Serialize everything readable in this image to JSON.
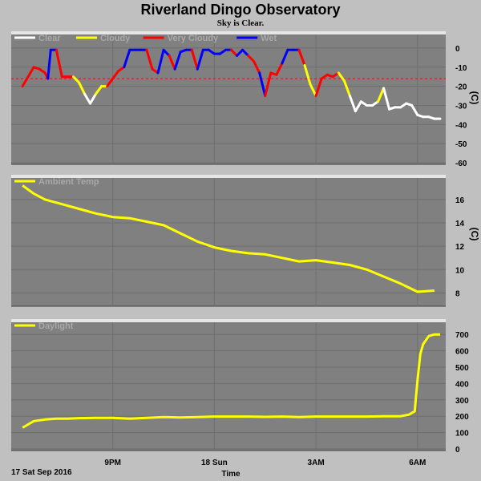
{
  "header": {
    "title": "Riverland Dingo Observatory",
    "subtitle": "Sky is Clear."
  },
  "footer": {
    "date_label": "17 Sat Sep 2016",
    "x_title": "Time"
  },
  "colors": {
    "clear": "#ffffff",
    "cloudy": "#ffff00",
    "very_cloudy": "#ff0000",
    "wet": "#0000ff",
    "plot_bg": "#808080",
    "chart_bg": "#c0c0c0",
    "grid": "#6e6e6e",
    "threshold_line": "#ff0000"
  },
  "chart_data": [
    {
      "type": "line",
      "name": "sky-temperature",
      "legend": [
        {
          "label": "Clear",
          "color": "#ffffff"
        },
        {
          "label": "Cloudy",
          "color": "#ffff00"
        },
        {
          "label": "Very Cloudy",
          "color": "#ff0000"
        },
        {
          "label": "Wet",
          "color": "#0000ff"
        }
      ],
      "legend_placement": "top-left",
      "unit_label": "(C)",
      "ylim": [
        -60,
        5
      ],
      "yticks": [
        0,
        -10,
        -20,
        -30,
        -40,
        -50,
        -60
      ],
      "grid": true,
      "threshold": -16,
      "x": [
        "18:20",
        "18:30",
        "18:40",
        "18:50",
        "19:00",
        "19:05",
        "19:10",
        "19:20",
        "19:30",
        "19:40",
        "19:50",
        "20:00",
        "20:10",
        "20:20",
        "20:30",
        "20:40",
        "20:50",
        "21:00",
        "21:10",
        "21:20",
        "21:30",
        "21:40",
        "21:50",
        "22:00",
        "22:10",
        "22:20",
        "22:30",
        "22:40",
        "22:50",
        "23:00",
        "23:10",
        "23:20",
        "23:30",
        "23:40",
        "23:50",
        "00:00",
        "00:10",
        "00:20",
        "00:30",
        "00:40",
        "00:50",
        "01:00",
        "01:10",
        "01:20",
        "01:30",
        "01:40",
        "01:50",
        "02:00",
        "02:10",
        "02:20",
        "02:30",
        "02:40",
        "02:50",
        "03:00",
        "03:10",
        "03:20",
        "03:30",
        "03:40",
        "03:50",
        "04:00",
        "04:10",
        "04:20",
        "04:30",
        "04:40",
        "04:50",
        "05:00",
        "05:10",
        "05:20",
        "05:30",
        "05:40",
        "05:50",
        "06:00",
        "06:10",
        "06:20",
        "06:30",
        "06:40"
      ],
      "y": [
        -20,
        -15,
        -10,
        -11,
        -13,
        -16,
        -1,
        -1,
        -15,
        -15,
        -15,
        -18,
        -24,
        -29,
        -24,
        -20,
        -20,
        -16,
        -12,
        -10,
        -1,
        -1,
        -1,
        -1,
        -11,
        -13,
        -1,
        -4,
        -11,
        -2,
        -1,
        -1,
        -11,
        -1,
        -1,
        -3,
        -3,
        -1,
        -1,
        -4,
        -1,
        -4,
        -7,
        -13,
        -25,
        -13,
        -14,
        -8,
        -1,
        -1,
        -1,
        -9,
        -19,
        -25,
        -16,
        -14,
        -15,
        -13,
        -17,
        -25,
        -33,
        -28,
        -30,
        -30,
        -28,
        -21,
        -32,
        -31,
        -31,
        -29,
        -30,
        -35,
        -36,
        -36,
        -37,
        -37
      ],
      "state": [
        "cloudy",
        "very_cloudy",
        "very_cloudy",
        "very_cloudy",
        "very_cloudy",
        "very_cloudy",
        "wet",
        "wet",
        "very_cloudy",
        "very_cloudy",
        "very_cloudy",
        "cloudy",
        "cloudy",
        "clear",
        "clear",
        "cloudy",
        "cloudy",
        "very_cloudy",
        "very_cloudy",
        "very_cloudy",
        "wet",
        "wet",
        "wet",
        "wet",
        "very_cloudy",
        "very_cloudy",
        "wet",
        "wet",
        "very_cloudy",
        "wet",
        "wet",
        "wet",
        "very_cloudy",
        "wet",
        "wet",
        "wet",
        "wet",
        "wet",
        "wet",
        "very_cloudy",
        "wet",
        "wet",
        "very_cloudy",
        "very_cloudy",
        "wet",
        "very_cloudy",
        "very_cloudy",
        "very_cloudy",
        "wet",
        "wet",
        "wet",
        "very_cloudy",
        "cloudy",
        "cloudy",
        "very_cloudy",
        "very_cloudy",
        "very_cloudy",
        "very_cloudy",
        "cloudy",
        "cloudy",
        "clear",
        "clear",
        "clear",
        "clear",
        "clear",
        "cloudy",
        "clear",
        "clear",
        "clear",
        "clear",
        "clear",
        "clear",
        "clear",
        "clear",
        "clear",
        "clear"
      ]
    },
    {
      "type": "line",
      "name": "ambient-temperature",
      "legend": [
        {
          "label": "Ambient Temp",
          "color": "#ffff00"
        }
      ],
      "legend_placement": "top-left",
      "unit_label": "(C)",
      "ylim": [
        7,
        17.5
      ],
      "yticks": [
        16,
        14,
        12,
        10,
        8
      ],
      "grid": true,
      "x": [
        "18:20",
        "18:40",
        "19:00",
        "19:30",
        "20:00",
        "20:30",
        "21:00",
        "21:30",
        "22:00",
        "22:30",
        "23:00",
        "23:30",
        "00:00",
        "00:30",
        "01:00",
        "01:30",
        "02:00",
        "02:30",
        "03:00",
        "03:30",
        "04:00",
        "04:30",
        "05:00",
        "05:30",
        "06:00",
        "06:30"
      ],
      "y": [
        17.2,
        16.5,
        16.0,
        15.6,
        15.2,
        14.8,
        14.5,
        14.4,
        14.1,
        13.8,
        13.1,
        12.4,
        11.9,
        11.6,
        11.4,
        11.3,
        11.0,
        10.7,
        10.8,
        10.6,
        10.4,
        10.0,
        9.4,
        8.8,
        8.1,
        8.2
      ]
    },
    {
      "type": "line",
      "name": "daylight",
      "legend": [
        {
          "label": "Daylight",
          "color": "#ffff00"
        }
      ],
      "legend_placement": "top-left",
      "ylim": [
        0,
        750
      ],
      "yticks": [
        700,
        600,
        500,
        400,
        300,
        200,
        100,
        0
      ],
      "grid": true,
      "x": [
        "18:20",
        "18:40",
        "19:00",
        "19:20",
        "19:40",
        "20:00",
        "20:30",
        "21:00",
        "21:30",
        "22:00",
        "22:30",
        "23:00",
        "23:30",
        "00:00",
        "00:30",
        "01:00",
        "01:30",
        "02:00",
        "02:30",
        "03:00",
        "03:30",
        "04:00",
        "04:30",
        "05:00",
        "05:30",
        "05:45",
        "05:55",
        "06:00",
        "06:05",
        "06:10",
        "06:20",
        "06:30",
        "06:40"
      ],
      "y": [
        130,
        170,
        180,
        185,
        185,
        188,
        190,
        190,
        185,
        190,
        195,
        192,
        195,
        198,
        198,
        198,
        196,
        198,
        195,
        198,
        198,
        198,
        198,
        200,
        200,
        210,
        230,
        420,
        580,
        640,
        690,
        700,
        700
      ]
    }
  ],
  "x_axis": {
    "ticks": [
      {
        "label": "9PM",
        "time": "21:00"
      },
      {
        "label": "18 Sun",
        "time": "00:00"
      },
      {
        "label": "3AM",
        "time": "03:00"
      },
      {
        "label": "6AM",
        "time": "06:00"
      }
    ],
    "start": "18:00",
    "end": "06:50"
  }
}
